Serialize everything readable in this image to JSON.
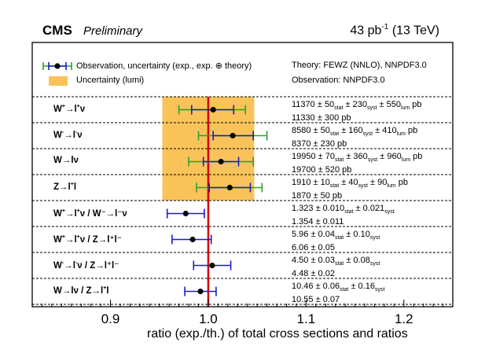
{
  "header": {
    "experiment": "CMS",
    "status": "Preliminary",
    "luminosity_value": "43 pb",
    "luminosity_exponent": "-1",
    "energy": "(13 TeV)"
  },
  "legend": {
    "observation": "Observation, uncertainty (exp., exp. ⊕ theory)",
    "lumi": "Uncertainty (lumi)",
    "theory": "Theory: FEWZ (NNLO), NNPDF3.0",
    "observation_pdf": "Observation: NNPDF3.0"
  },
  "colors": {
    "exp_error": "#1a1acc",
    "theory_error": "#2ca02c",
    "lumi_band": "#f9c35a",
    "theory_line": "#d40000"
  },
  "chart_data": {
    "type": "scatter",
    "xlabel": "ratio (exp./th.) of total cross sections and ratios",
    "xlim": [
      0.82,
      1.25
    ],
    "xticks": [
      "0.9",
      "1.0",
      "1.1",
      "1.2"
    ],
    "lumi_band": [
      0.953,
      1.047
    ],
    "rows": [
      {
        "label_main": "W",
        "label_sup1": "+",
        "label_rest": "→l",
        "label_sup2": "+",
        "label_tail": "ν",
        "ratio": 1.005,
        "exp_low": 0.983,
        "exp_high": 1.026,
        "tot_low": 0.97,
        "tot_high": 1.038,
        "text1": "11370 ± 50",
        "text1_s1": "stat",
        "text1_b": " ± 230",
        "text1_s2": "syst",
        "text1_c": " ± 550",
        "text1_s3": "lum",
        "text1_d": " pb",
        "text2": "11330 ± 300 pb"
      },
      {
        "label_main": "W",
        "label_sup1": "-",
        "label_rest": "→l",
        "label_sup2": "-",
        "label_tail": "ν",
        "ratio": 1.025,
        "exp_low": 1.005,
        "exp_high": 1.046,
        "tot_low": 0.99,
        "tot_high": 1.06,
        "text1": "8580 ± 50",
        "text1_s1": "stat",
        "text1_b": " ± 160",
        "text1_s2": "syst",
        "text1_c": " ± 410",
        "text1_s3": "lum",
        "text1_d": " pb",
        "text2": "8370 ± 230 pb"
      },
      {
        "label_main": "W",
        "label_sup1": "",
        "label_rest": "→lν",
        "label_sup2": "",
        "label_tail": "",
        "ratio": 1.013,
        "exp_low": 0.995,
        "exp_high": 1.031,
        "tot_low": 0.98,
        "tot_high": 1.046,
        "text1": "19950 ± 70",
        "text1_s1": "stat",
        "text1_b": " ± 360",
        "text1_s2": "syst",
        "text1_c": " ± 960",
        "text1_s3": "lum",
        "text1_d": " pb",
        "text2": "19700 ± 520 pb"
      },
      {
        "label_main": "Z",
        "label_sup1": "",
        "label_rest": "→l",
        "label_sup2": "+",
        "label_tail": "l",
        "ratio": 1.022,
        "exp_low": 1.001,
        "exp_high": 1.043,
        "tot_low": 0.988,
        "tot_high": 1.055,
        "text1": "1910 ± 10",
        "text1_s1": "stat",
        "text1_b": " ± 40",
        "text1_s2": "syst",
        "text1_c": " ± 90",
        "text1_s3": "lum",
        "text1_d": " pb",
        "text2": "1870 ± 50 pb"
      },
      {
        "label_main": "W",
        "label_sup1": "+",
        "label_rest": "→l",
        "label_sup2": "+",
        "label_tail": "ν / W⁻→l⁻ν",
        "ratio": 0.977,
        "exp_low": 0.958,
        "exp_high": 0.996,
        "tot_low": 0.958,
        "tot_high": 0.996,
        "text1": "1.323 ± 0.010",
        "text1_s1": "stat",
        "text1_b": " ± 0.021",
        "text1_s2": "syst",
        "text1_c": "",
        "text1_s3": "",
        "text1_d": "",
        "text2": "1.354 ± 0.011"
      },
      {
        "label_main": "W",
        "label_sup1": "+",
        "label_rest": "→l",
        "label_sup2": "+",
        "label_tail": "ν / Z→l⁺l⁻",
        "ratio": 0.984,
        "exp_low": 0.963,
        "exp_high": 1.003,
        "tot_low": 0.963,
        "tot_high": 1.003,
        "text1": "5.96 ± 0.04",
        "text1_s1": "stat",
        "text1_b": " ± 0.10",
        "text1_s2": "syst",
        "text1_c": "",
        "text1_s3": "",
        "text1_d": "",
        "text2": "6.06 ± 0.05"
      },
      {
        "label_main": "W",
        "label_sup1": "-",
        "label_rest": "→l",
        "label_sup2": "-",
        "label_tail": "ν / Z→l⁺l⁻",
        "ratio": 1.004,
        "exp_low": 0.985,
        "exp_high": 1.023,
        "tot_low": 0.985,
        "tot_high": 1.023,
        "text1": "4.50 ± 0.03",
        "text1_s1": "stat",
        "text1_b": " ± 0.08",
        "text1_s2": "syst",
        "text1_c": "",
        "text1_s3": "",
        "text1_d": "",
        "text2": "4.48 ± 0.02"
      },
      {
        "label_main": "W",
        "label_sup1": "",
        "label_rest": "→lν / Z→l",
        "label_sup2": "+",
        "label_tail": "l",
        "ratio": 0.992,
        "exp_low": 0.976,
        "exp_high": 1.008,
        "tot_low": 0.976,
        "tot_high": 1.008,
        "text1": "10.46 ± 0.06",
        "text1_s1": "stat",
        "text1_b": " ± 0.16",
        "text1_s2": "syst",
        "text1_c": "",
        "text1_s3": "",
        "text1_d": "",
        "text2": "10.55 ± 0.07"
      }
    ]
  }
}
